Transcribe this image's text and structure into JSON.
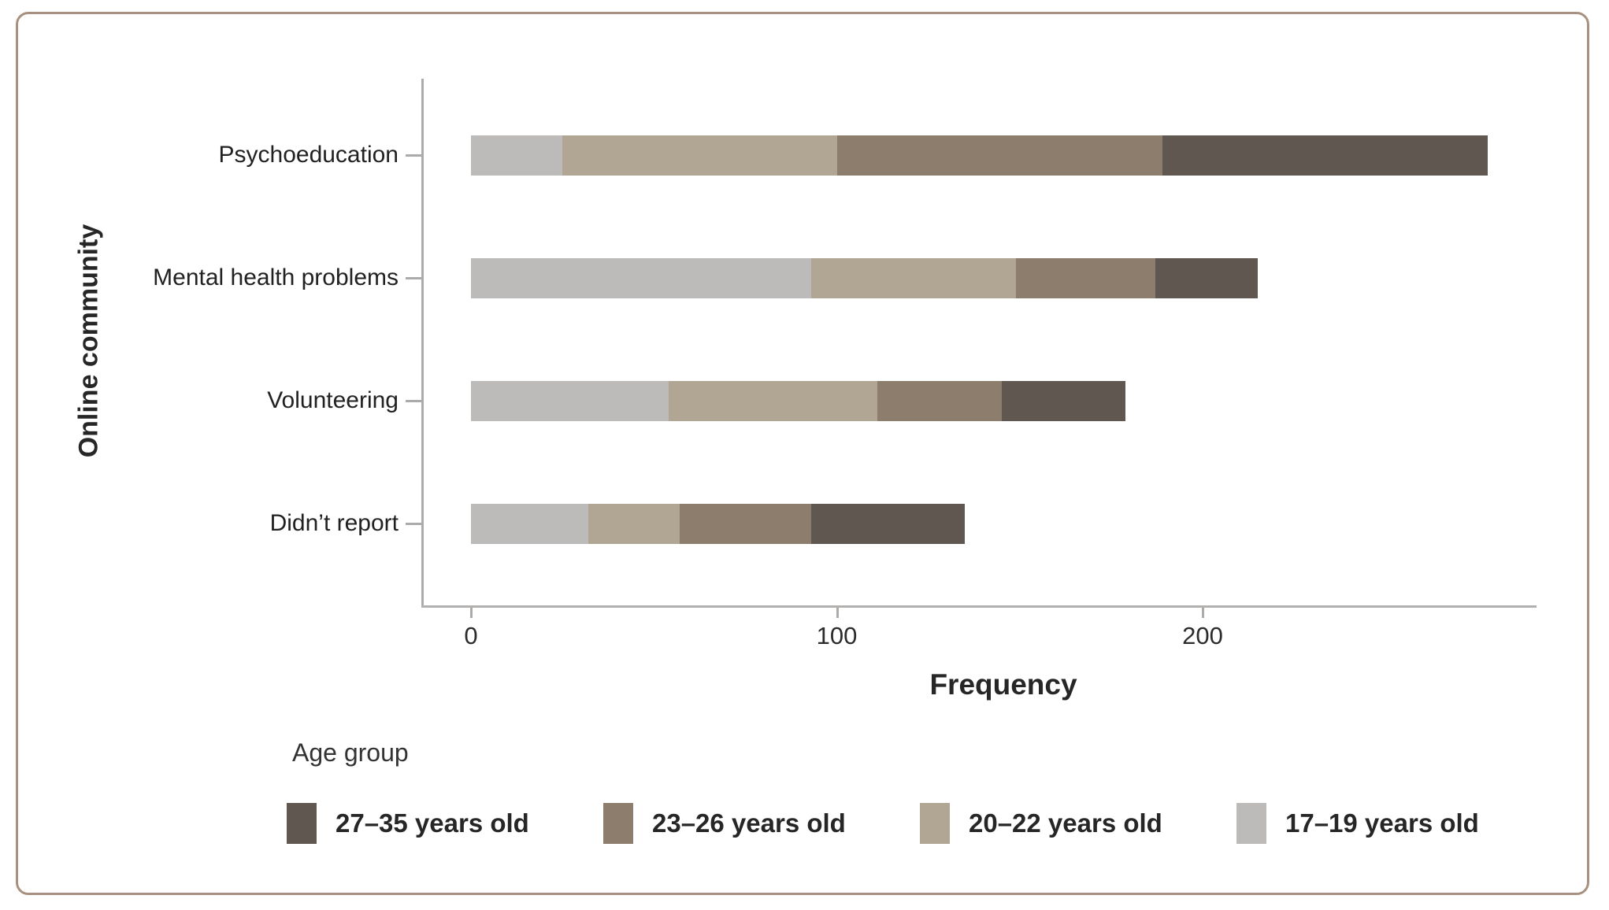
{
  "chart_data": {
    "type": "bar",
    "orientation": "horizontal",
    "stacked": true,
    "xlabel": "Frequency",
    "ylabel": "Online community",
    "categories": [
      "Psychoeducation",
      "Mental health problems",
      "Volunteering",
      "Didn’t report"
    ],
    "series": [
      {
        "name": "17–19 years old",
        "color": "#bcbbb9",
        "values": [
          25,
          93,
          54,
          32
        ]
      },
      {
        "name": "20–22 years old",
        "color": "#b1a594",
        "values": [
          75,
          56,
          57,
          25
        ]
      },
      {
        "name": "23–26 years old",
        "color": "#8d7d6c",
        "values": [
          89,
          38,
          34,
          36
        ]
      },
      {
        "name": "27–35 years old",
        "color": "#5f5750",
        "values": [
          89,
          28,
          34,
          42
        ]
      }
    ],
    "totals": [
      278,
      215,
      179,
      135
    ],
    "x_ticks": [
      0,
      100,
      200
    ],
    "x_tick_labels": [
      "0",
      "100",
      "200"
    ],
    "xlim": [
      0,
      293
    ],
    "grid": false,
    "legend_position": "bottom",
    "legend_title": "Age group",
    "legend_order": [
      "27–35 years old",
      "23–26 years old",
      "20–22 years old",
      "17–19 years old"
    ]
  },
  "axes": {
    "x_title": "Frequency",
    "y_title": "Online community"
  },
  "legend": {
    "title": "Age group",
    "items": [
      {
        "label": "27–35 years old",
        "color": "#5f5750"
      },
      {
        "label": "23–26 years old",
        "color": "#8d7d6c"
      },
      {
        "label": "20–22 years old",
        "color": "#b1a594"
      },
      {
        "label": "17–19 years old",
        "color": "#bcbbb9"
      }
    ]
  },
  "frame": {
    "border_color": "#a89180"
  }
}
